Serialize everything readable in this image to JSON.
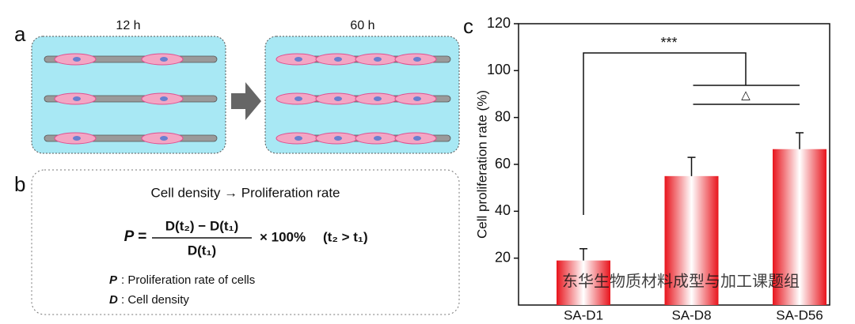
{
  "panels": {
    "a": {
      "label": "a",
      "left_title": "12 h",
      "right_title": "60 h"
    },
    "b": {
      "label": "b",
      "heading": "Cell density → Proliferation rate",
      "formula": {
        "lhs": "P =",
        "numerator": "D(t₂) − D(t₁)",
        "denominator": "D(t₁)",
        "factor": "× 100%",
        "condition": "(t₂ > t₁)"
      },
      "legend": [
        {
          "symbol": "P",
          "text": ": Proliferation rate of cells"
        },
        {
          "symbol": "D",
          "text": ": Cell density"
        }
      ]
    },
    "c": {
      "label": "c"
    }
  },
  "watermark": "东华生物质材料成型与加工课题组",
  "chart_data": {
    "type": "bar",
    "ylabel": "Cell proliferation rate (%)",
    "categories": [
      "SA-D1",
      "SA-D8",
      "SA-D56"
    ],
    "values": [
      19,
      55,
      66.5
    ],
    "errors": [
      5,
      8,
      7
    ],
    "color": "#e8141c",
    "ylim": [
      0,
      120
    ],
    "yticks": [
      20,
      40,
      60,
      80,
      100,
      120
    ],
    "annotations": [
      "***",
      "△"
    ]
  }
}
